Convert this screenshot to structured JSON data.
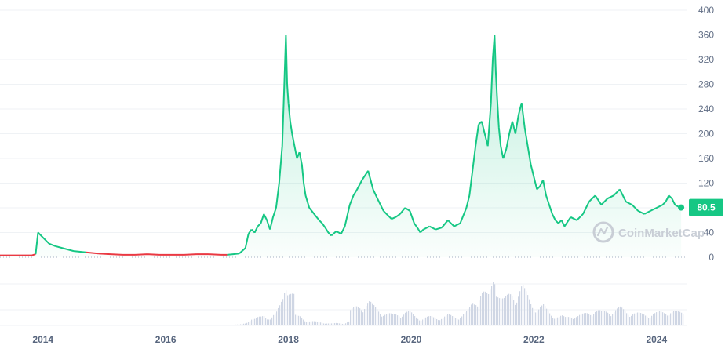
{
  "chart_data": {
    "type": "line",
    "title": "",
    "xlabel": "",
    "ylabel": "",
    "ylim": [
      0,
      400
    ],
    "xlim": [
      2013.3,
      2024.45
    ],
    "y_ticks": [
      "0",
      "40",
      "80",
      "120",
      "160",
      "200",
      "240",
      "280",
      "320",
      "360",
      "400"
    ],
    "x_ticks": [
      "2014",
      "2016",
      "2018",
      "2020",
      "2022",
      "2024"
    ],
    "current_value": "80.5",
    "grid": true,
    "series": [
      {
        "x": [
          2013.3,
          2013.5,
          2013.7,
          2013.82,
          2013.88,
          2013.92,
          2014.0,
          2014.1,
          2014.2,
          2014.35,
          2014.5,
          2014.7,
          2014.9,
          2015.1,
          2015.3,
          2015.5,
          2015.7,
          2015.9,
          2016.1,
          2016.3,
          2016.5,
          2016.7,
          2016.9,
          2017.0,
          2017.1,
          2017.2,
          2017.3,
          2017.35,
          2017.4,
          2017.45,
          2017.5,
          2017.55,
          2017.6,
          2017.65,
          2017.7,
          2017.75,
          2017.8,
          2017.85,
          2017.9,
          2017.93,
          2017.96,
          2017.98,
          2018.0,
          2018.03,
          2018.06,
          2018.1,
          2018.14,
          2018.18,
          2018.22,
          2018.25,
          2018.28,
          2018.31,
          2018.34,
          2018.38,
          2018.42,
          2018.46,
          2018.5,
          2018.55,
          2018.6,
          2018.65,
          2018.7,
          2018.78,
          2018.86,
          2018.92,
          2019.0,
          2019.06,
          2019.12,
          2019.2,
          2019.3,
          2019.38,
          2019.45,
          2019.5,
          2019.55,
          2019.6,
          2019.68,
          2019.75,
          2019.82,
          2019.9,
          2019.98,
          2020.05,
          2020.12,
          2020.15,
          2020.2,
          2020.3,
          2020.4,
          2020.5,
          2020.6,
          2020.7,
          2020.8,
          2020.9,
          2020.95,
          2021.0,
          2021.05,
          2021.1,
          2021.15,
          2021.2,
          2021.25,
          2021.3,
          2021.33,
          2021.36,
          2021.38,
          2021.4,
          2021.43,
          2021.46,
          2021.5,
          2021.55,
          2021.6,
          2021.65,
          2021.7,
          2021.75,
          2021.8,
          2021.85,
          2021.9,
          2021.95,
          2022.0,
          2022.05,
          2022.1,
          2022.15,
          2022.2,
          2022.25,
          2022.3,
          2022.35,
          2022.4,
          2022.45,
          2022.5,
          2022.6,
          2022.7,
          2022.8,
          2022.9,
          2023.0,
          2023.1,
          2023.2,
          2023.3,
          2023.4,
          2023.5,
          2023.6,
          2023.7,
          2023.8,
          2023.9,
          2024.0,
          2024.1,
          2024.15,
          2024.2,
          2024.25,
          2024.3,
          2024.35,
          2024.4
        ],
        "y": [
          3,
          3,
          3,
          3,
          5,
          40,
          32,
          22,
          18,
          14,
          10,
          8,
          6,
          5,
          4,
          4,
          5,
          4,
          4,
          4,
          5,
          5,
          4,
          4,
          5,
          6,
          15,
          38,
          45,
          40,
          50,
          55,
          70,
          60,
          45,
          65,
          80,
          120,
          180,
          270,
          360,
          280,
          250,
          220,
          200,
          180,
          160,
          170,
          150,
          120,
          100,
          90,
          80,
          75,
          70,
          65,
          60,
          55,
          48,
          40,
          35,
          42,
          38,
          50,
          85,
          100,
          110,
          125,
          140,
          110,
          95,
          85,
          75,
          70,
          62,
          65,
          70,
          80,
          75,
          55,
          45,
          40,
          45,
          50,
          45,
          48,
          60,
          50,
          55,
          80,
          100,
          140,
          180,
          215,
          220,
          200,
          180,
          250,
          320,
          360,
          300,
          260,
          210,
          180,
          160,
          175,
          200,
          220,
          200,
          230,
          250,
          210,
          180,
          150,
          130,
          110,
          115,
          125,
          100,
          85,
          70,
          60,
          55,
          60,
          50,
          65,
          60,
          70,
          90,
          100,
          85,
          95,
          100,
          110,
          90,
          85,
          75,
          70,
          75,
          80,
          85,
          90,
          100,
          95,
          85,
          82,
          80.5
        ]
      }
    ]
  },
  "watermark": {
    "text": "CoinMarketCap",
    "icon": "coinmarketcap-logo-icon"
  },
  "colors": {
    "up": "#16c784",
    "down": "#ea3943",
    "grid": "#eff2f5",
    "text": "#616e85",
    "volume": "#cfd6e4"
  }
}
